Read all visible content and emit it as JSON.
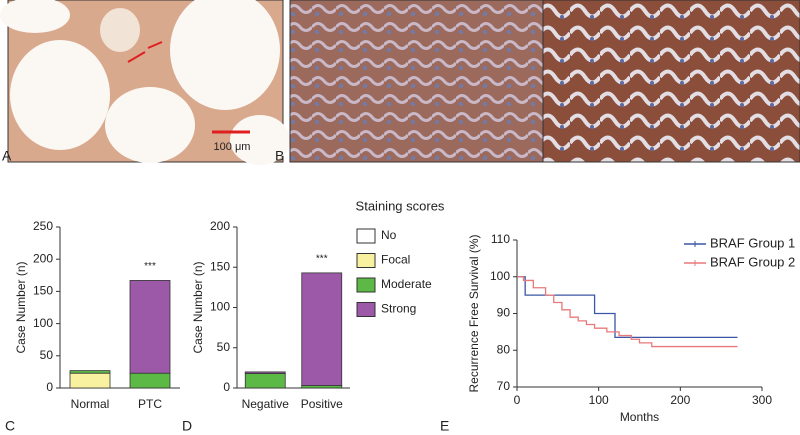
{
  "panel_labels": [
    "A",
    "B",
    "C",
    "D",
    "E"
  ],
  "scale_bar": "100 μm",
  "legend": {
    "title": "Staining scores",
    "items": [
      {
        "name": "No",
        "color": "#ffffff"
      },
      {
        "name": "Focal",
        "color": "#f8f1a0"
      },
      {
        "name": "Moderate",
        "color": "#5cb946"
      },
      {
        "name": "Strong",
        "color": "#9b59a8"
      }
    ]
  },
  "chart_data": [
    {
      "type": "bar",
      "stacked": true,
      "ylabel": "Case Number (n)",
      "categories": [
        "Normal",
        "PTC"
      ],
      "series": [
        {
          "values": [
            0,
            0
          ]
        },
        {
          "values": [
            23,
            0
          ]
        },
        {
          "values": [
            4,
            23
          ]
        },
        {
          "values": [
            0,
            144
          ]
        }
      ],
      "annotations": [
        null,
        "***"
      ],
      "ylim": [
        0,
        250
      ],
      "yticks": [
        0,
        50,
        100,
        150,
        200,
        250
      ]
    },
    {
      "type": "bar",
      "stacked": true,
      "ylabel": "Case Number (n)",
      "categories": [
        "Negative",
        "Positive"
      ],
      "series": [
        {
          "values": [
            0,
            0
          ]
        },
        {
          "values": [
            0,
            0
          ]
        },
        {
          "values": [
            18,
            3
          ]
        },
        {
          "values": [
            2,
            140
          ]
        }
      ],
      "annotations": [
        null,
        "***"
      ],
      "ylim": [
        0,
        200
      ],
      "yticks": [
        0,
        50,
        100,
        150,
        200
      ]
    },
    {
      "type": "step",
      "xlabel": "Months",
      "ylabel": "Recurrence Free Survival (%)",
      "xlim": [
        0,
        300
      ],
      "xticks": [
        0,
        100,
        200,
        300
      ],
      "ylim": [
        70,
        110
      ],
      "yticks": [
        70,
        80,
        90,
        100,
        110
      ],
      "series": [
        {
          "name": "BRAF Group 1",
          "color": "#3a56a5",
          "x": [
            0,
            10,
            95,
            120,
            270
          ],
          "y": [
            100,
            95,
            90,
            83.5,
            83.5
          ]
        },
        {
          "name": "BRAF Group 2",
          "color": "#e8797b",
          "x": [
            0,
            8,
            20,
            35,
            45,
            55,
            65,
            75,
            85,
            95,
            110,
            125,
            140,
            150,
            165,
            270
          ],
          "y": [
            100,
            99,
            97,
            95,
            93,
            91,
            89,
            88,
            87,
            86,
            85,
            84,
            83,
            82,
            81,
            81
          ]
        }
      ]
    }
  ]
}
